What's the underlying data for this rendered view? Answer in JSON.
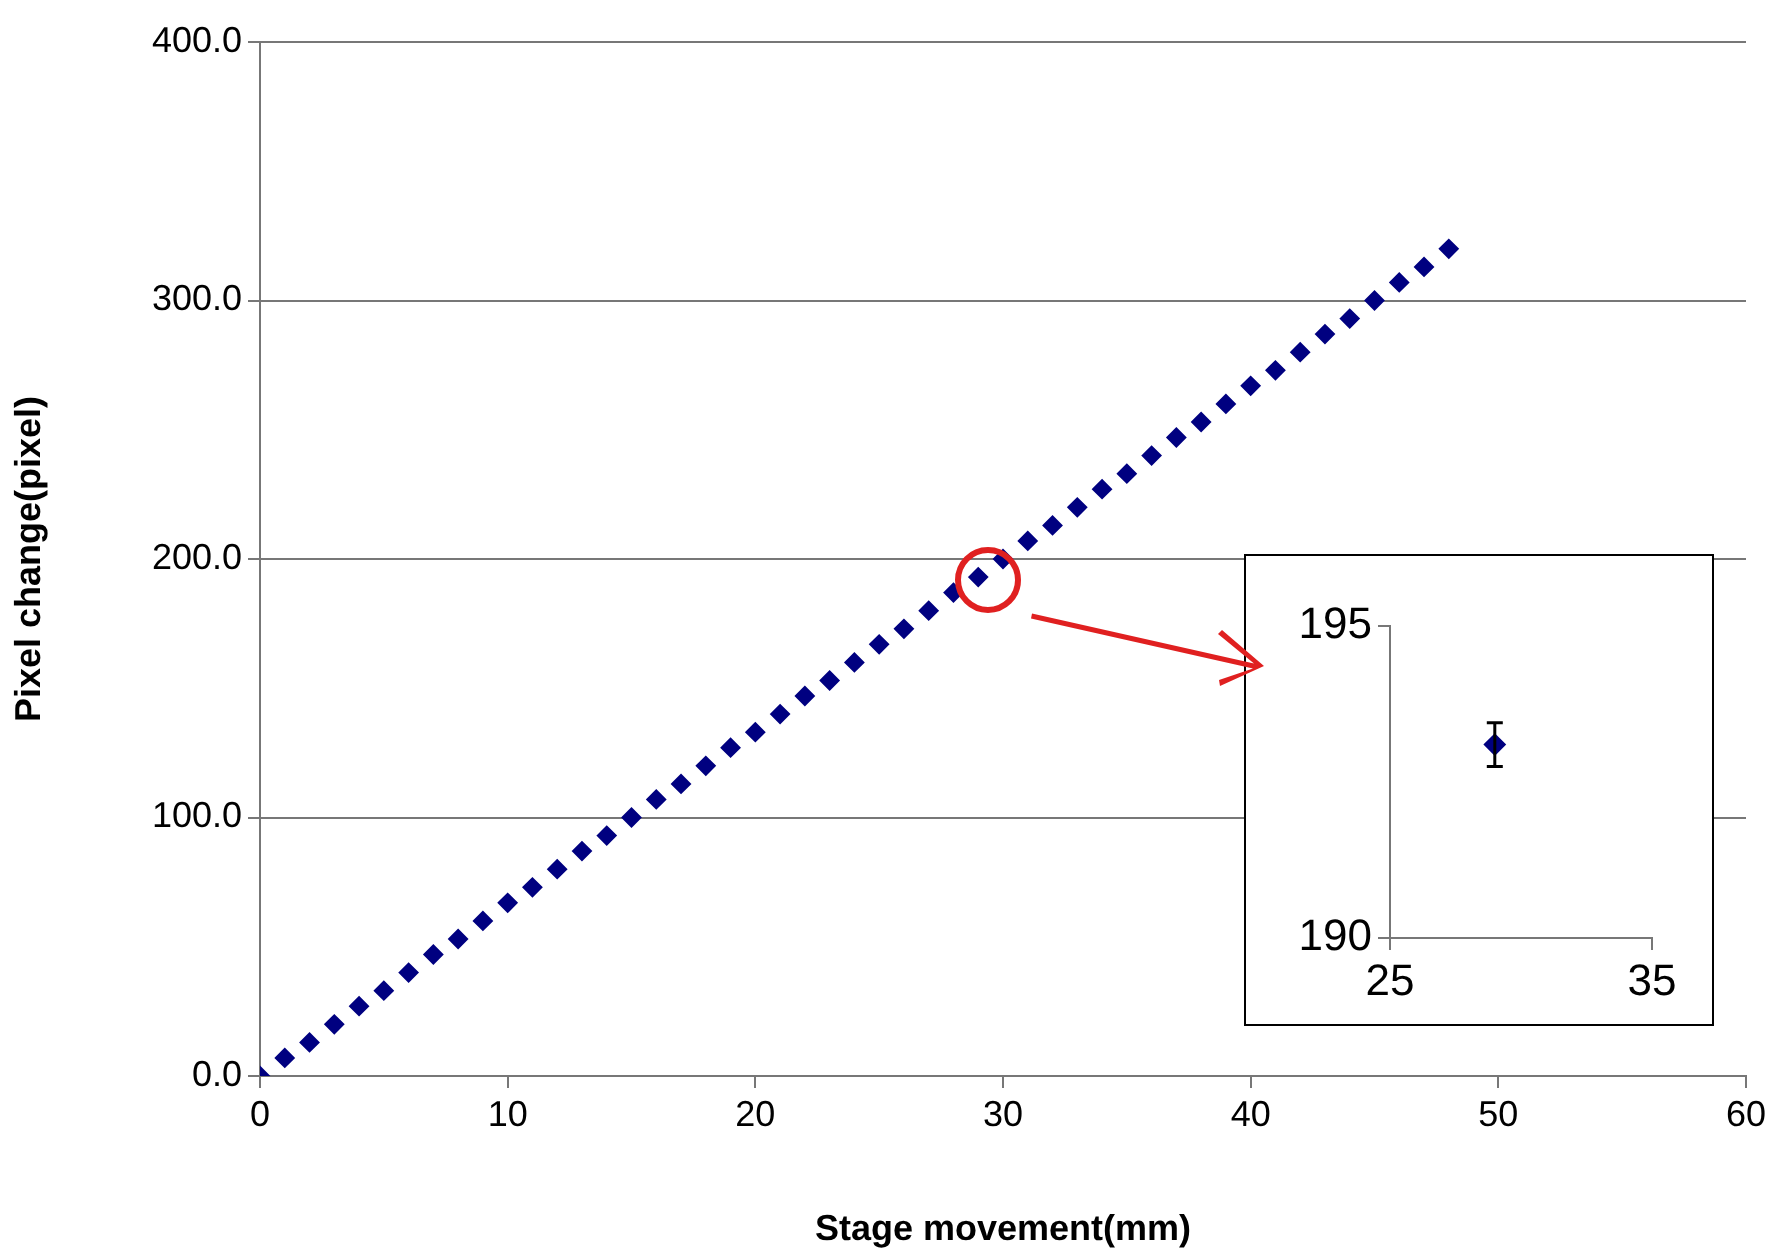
{
  "chart_data": [
    {
      "type": "scatter",
      "xlabel": "Stage movement(mm)",
      "ylabel": "Pixel change(pixel)",
      "color": "#000080",
      "marker": "diamond",
      "grid": "y",
      "x": [
        0,
        1,
        2,
        3,
        4,
        5,
        6,
        7,
        8,
        9,
        10,
        11,
        12,
        13,
        14,
        15,
        16,
        17,
        18,
        19,
        20,
        21,
        22,
        23,
        24,
        25,
        26,
        27,
        28,
        29,
        30,
        31,
        32,
        33,
        34,
        35,
        36,
        37,
        38,
        39,
        40,
        41,
        42,
        43,
        44,
        45,
        46,
        47,
        48
      ],
      "values": [
        0,
        7,
        13,
        20,
        27,
        33,
        40,
        47,
        53,
        60,
        67,
        73,
        80,
        87,
        93,
        100,
        107,
        113,
        120,
        127,
        133,
        140,
        147,
        153,
        160,
        167,
        173,
        180,
        187,
        193,
        200,
        207,
        213,
        220,
        227,
        233,
        240,
        247,
        253,
        260,
        267,
        273,
        280,
        287,
        293,
        300,
        307,
        313,
        320
      ],
      "xlim": [
        0,
        60
      ],
      "xticks": [
        0,
        10,
        20,
        30,
        40,
        50,
        60
      ],
      "ylim": [
        0,
        400
      ],
      "yticks": [
        {
          "value": 0,
          "label": "0.0"
        },
        {
          "value": 100,
          "label": "100.0"
        },
        {
          "value": 200,
          "label": "200.0"
        },
        {
          "value": 300,
          "label": "300.0"
        },
        {
          "value": 400,
          "label": "400.0"
        }
      ]
    },
    {
      "type": "scatter",
      "color": "#000080",
      "marker": "diamond",
      "x": [
        29
      ],
      "values": [
        193.1
      ],
      "errors": [
        0.35
      ],
      "xlim": [
        25,
        35
      ],
      "xticks": [
        25,
        35
      ],
      "ylim": [
        190,
        195
      ],
      "yticks": [
        190,
        195
      ]
    }
  ]
}
